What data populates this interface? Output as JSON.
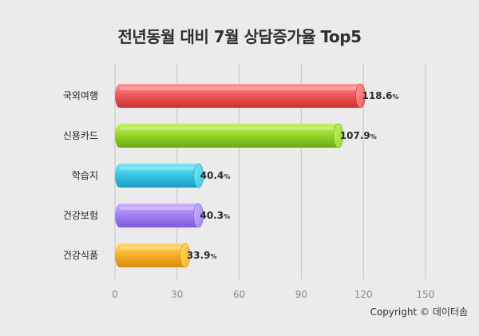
{
  "chart_data": {
    "type": "bar",
    "orientation": "horizontal",
    "title": "전년동월 대비 7월 상담증가율 Top5",
    "categories": [
      "국외여행",
      "신용카드",
      "학습지",
      "건강보험",
      "건강식품"
    ],
    "values": [
      118.6,
      107.9,
      40.4,
      40.3,
      33.9
    ],
    "value_labels": [
      "118.6",
      "107.9",
      "40.4",
      "40.3",
      "33.9"
    ],
    "value_suffix": "%",
    "xlim": [
      0,
      150
    ],
    "xticks": [
      "0",
      "30",
      "60",
      "90",
      "120",
      "150"
    ],
    "xtick_values": [
      0,
      30,
      60,
      90,
      120,
      150
    ],
    "grid": true,
    "colors": [
      {
        "light": "#ff9a9a",
        "mid": "#f05a5a",
        "dark": "#c83232"
      },
      {
        "light": "#c4f06a",
        "mid": "#96d82a",
        "dark": "#6aa814"
      },
      {
        "light": "#7ee6f6",
        "mid": "#38c8e4",
        "dark": "#1e9cc0"
      },
      {
        "light": "#cdb4ff",
        "mid": "#a482f6",
        "dark": "#7d5cd6"
      },
      {
        "light": "#ffd868",
        "mid": "#f7b32a",
        "dark": "#d68c10"
      }
    ]
  },
  "footer": {
    "copyright": "Copyright © 데이터솜"
  }
}
